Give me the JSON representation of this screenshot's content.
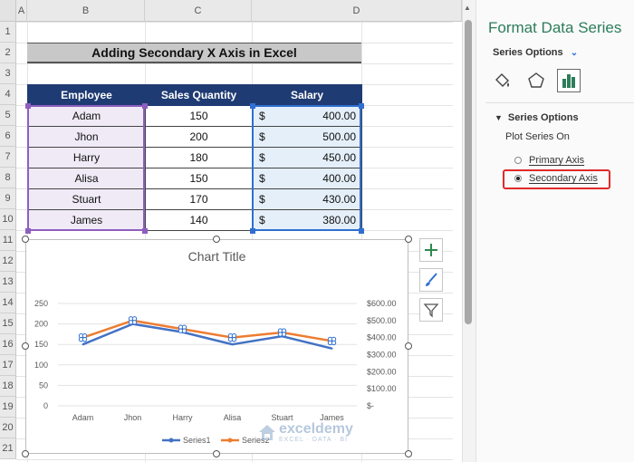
{
  "sheet": {
    "columns": [
      "A",
      "B",
      "C",
      "D"
    ],
    "rows": [
      "1",
      "2",
      "3",
      "4",
      "5",
      "6",
      "7",
      "8",
      "9",
      "10",
      "11",
      "12",
      "13",
      "14",
      "15",
      "16",
      "17",
      "18",
      "19",
      "20",
      "21"
    ],
    "title": "Adding Secondary X Axis in Excel",
    "table": {
      "headers": [
        "Employee",
        "Sales  Quantity",
        "Salary"
      ],
      "currency_symbol": "$",
      "rows": [
        {
          "employee": "Adam",
          "qty": "150",
          "salary": "400.00"
        },
        {
          "employee": "Jhon",
          "qty": "200",
          "salary": "500.00"
        },
        {
          "employee": "Harry",
          "qty": "180",
          "salary": "450.00"
        },
        {
          "employee": "Alisa",
          "qty": "150",
          "salary": "400.00"
        },
        {
          "employee": "Stuart",
          "qty": "170",
          "salary": "430.00"
        },
        {
          "employee": "James",
          "qty": "140",
          "salary": "380.00"
        }
      ]
    }
  },
  "chart_data": {
    "type": "line",
    "title": "Chart Title",
    "categories": [
      "Adam",
      "Jhon",
      "Harry",
      "Alisa",
      "Stuart",
      "James"
    ],
    "y_ticks": [
      "250",
      "200",
      "150",
      "100",
      "50",
      "0"
    ],
    "y2_ticks": [
      "$600.00",
      "$500.00",
      "$400.00",
      "$300.00",
      "$200.00",
      "$100.00",
      "$-"
    ],
    "ylim": [
      0,
      250
    ],
    "y2lim": [
      0,
      600
    ],
    "series": [
      {
        "name": "Series1",
        "axis": "primary",
        "color": "#4472c4",
        "values": [
          150,
          200,
          180,
          150,
          170,
          140
        ]
      },
      {
        "name": "Series2",
        "axis": "secondary",
        "color": "#ed7d31",
        "values": [
          400,
          500,
          450,
          400,
          430,
          380
        ]
      }
    ],
    "legend_position": "bottom",
    "watermark": "exceldemy",
    "watermark_sub": "EXCEL · DATA · BI"
  },
  "panel": {
    "title": "Format Data Series",
    "dropdown_label": "Series Options",
    "section_label": "Series Options",
    "plot_series_on": "Plot Series On",
    "primary_axis": "Primary Axis",
    "secondary_axis": "Secondary Axis",
    "selected_axis": "secondary",
    "accent_color": "#2d7d5a",
    "highlight_color": "#e02a2a"
  }
}
